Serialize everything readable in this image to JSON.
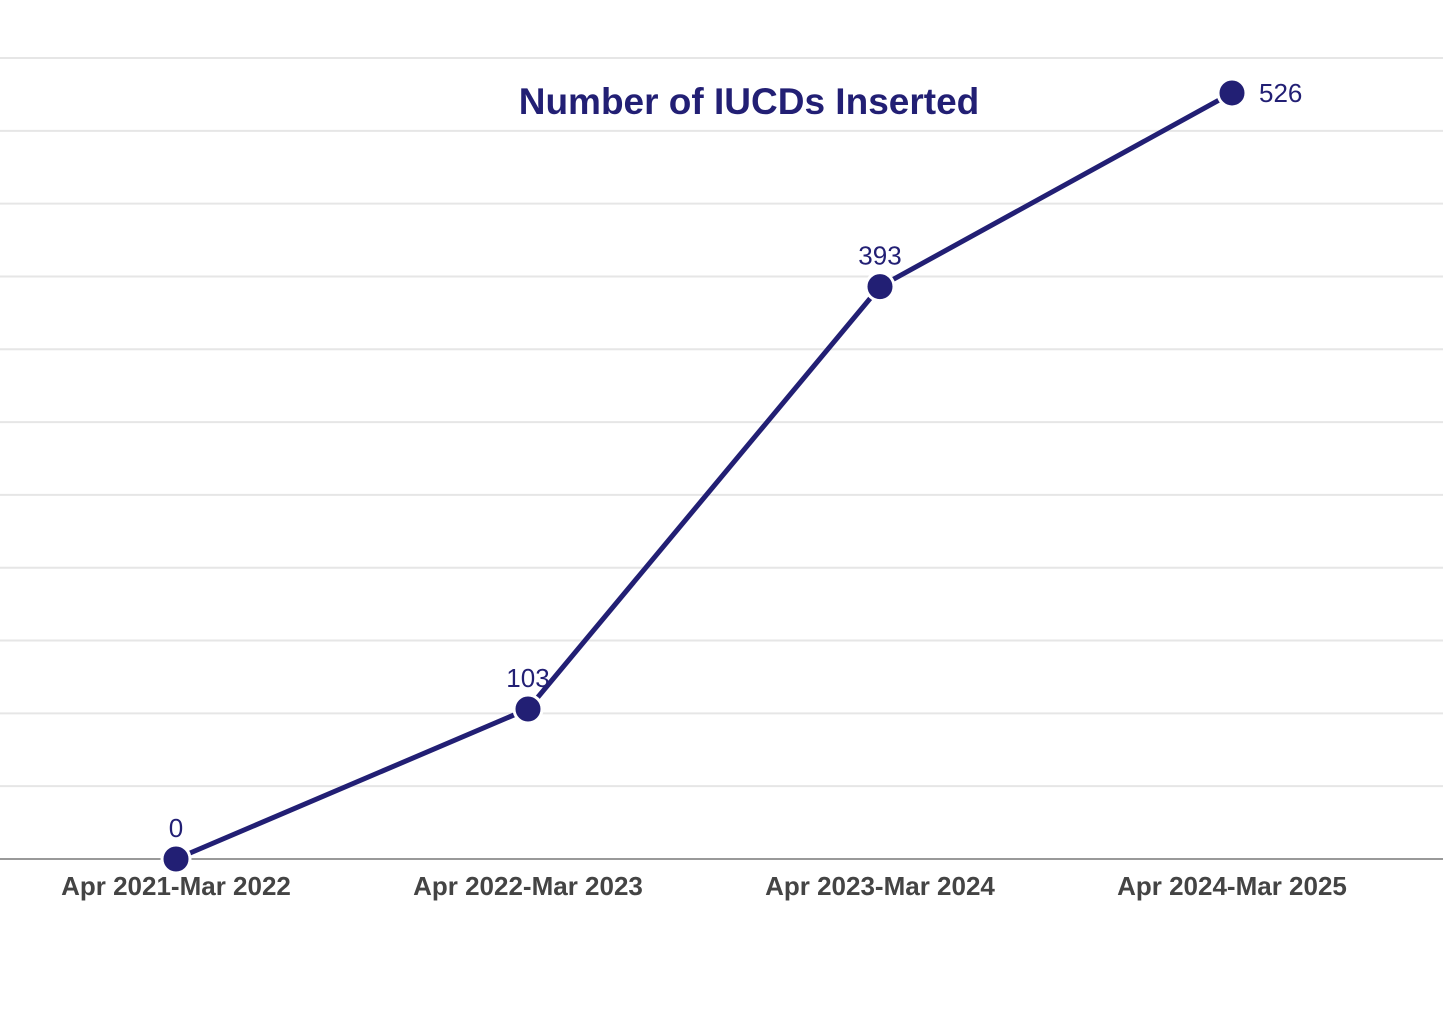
{
  "colors": {
    "series": "#221f74",
    "title": "#221f74",
    "data_label": "#221f74",
    "tick_label": "#444444",
    "grid": "#e6e6e6",
    "baseline": "#999999"
  },
  "chart_data": {
    "type": "line",
    "title": "Number of IUCDs Inserted",
    "xlabel": "",
    "ylabel": "",
    "categories": [
      "Apr 2021-Mar 2022",
      "Apr 2022-Mar 2023",
      "Apr 2023-Mar 2024",
      "Apr 2024-Mar 2025"
    ],
    "series": [
      {
        "values": [
          0,
          103,
          393,
          526
        ]
      }
    ],
    "ylim": [
      0,
      550
    ],
    "y_gridlines": [
      0,
      50,
      100,
      150,
      200,
      250,
      300,
      350,
      400,
      450,
      500,
      550
    ],
    "y_tick_labels_shown": false,
    "grid": true,
    "legend": "none",
    "data_labels": true
  }
}
